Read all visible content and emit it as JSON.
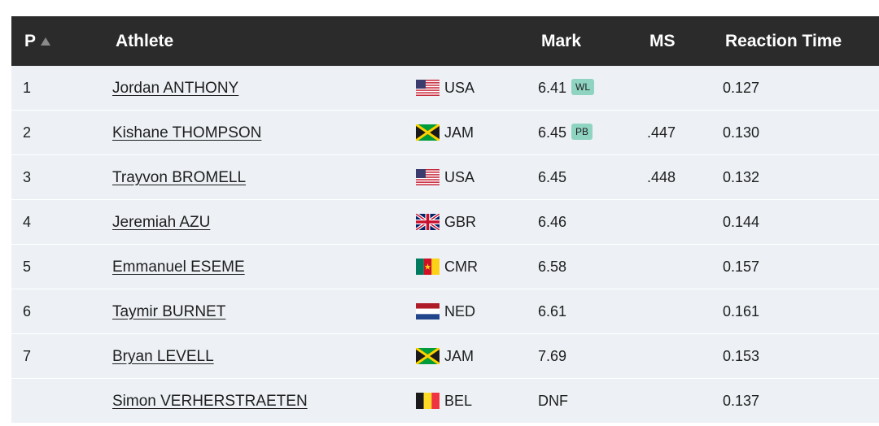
{
  "header": {
    "pos_label": "P",
    "athlete_label": "Athlete",
    "mark_label": "Mark",
    "ms_label": "MS",
    "rt_label": "Reaction Time"
  },
  "rows": [
    {
      "pos": "1",
      "name": "Jordan ANTHONY",
      "country": "USA",
      "flag": "usa-flag-icon",
      "mark": "6.41",
      "badge": "WL",
      "ms": "",
      "rt": "0.127"
    },
    {
      "pos": "2",
      "name": "Kishane THOMPSON",
      "country": "JAM",
      "flag": "jamaica-flag-icon",
      "mark": "6.45",
      "badge": "PB",
      "ms": ".447",
      "rt": "0.130"
    },
    {
      "pos": "3",
      "name": "Trayvon BROMELL",
      "country": "USA",
      "flag": "usa-flag-icon",
      "mark": "6.45",
      "badge": "",
      "ms": ".448",
      "rt": "0.132"
    },
    {
      "pos": "4",
      "name": "Jeremiah AZU",
      "country": "GBR",
      "flag": "uk-flag-icon",
      "mark": "6.46",
      "badge": "",
      "ms": "",
      "rt": "0.144"
    },
    {
      "pos": "5",
      "name": "Emmanuel ESEME",
      "country": "CMR",
      "flag": "cameroon-flag-icon",
      "mark": "6.58",
      "badge": "",
      "ms": "",
      "rt": "0.157"
    },
    {
      "pos": "6",
      "name": "Taymir BURNET",
      "country": "NED",
      "flag": "netherlands-flag-icon",
      "mark": "6.61",
      "badge": "",
      "ms": "",
      "rt": "0.161"
    },
    {
      "pos": "7",
      "name": "Bryan LEVELL",
      "country": "JAM",
      "flag": "jamaica-flag-icon",
      "mark": "7.69",
      "badge": "",
      "ms": "",
      "rt": "0.153"
    },
    {
      "pos": "",
      "name": "Simon VERHERSTRAETEN",
      "country": "BEL",
      "flag": "belgium-flag-icon",
      "mark": "DNF",
      "badge": "",
      "ms": "",
      "rt": "0.137"
    }
  ],
  "colors": {
    "header_bg": "#2b2b2b",
    "row_bg": "#edf1f5",
    "badge_bg": "#8fd3c1"
  }
}
